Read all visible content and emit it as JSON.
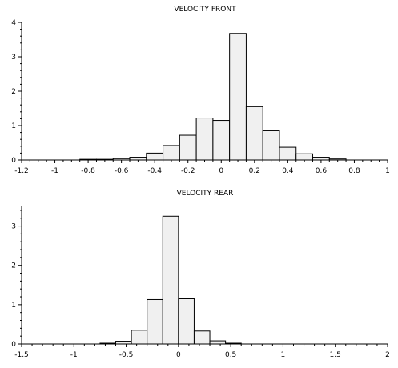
{
  "colors": {
    "bar_fill": "#f0f0f0",
    "bar_stroke": "#000000",
    "axis": "#000000",
    "background": "#ffffff"
  },
  "chart_data": [
    {
      "type": "bar",
      "histogram": true,
      "title": "VELOCITY FRONT",
      "xlabel": "",
      "ylabel": "",
      "xlim": [
        -1.2,
        1.0
      ],
      "ylim": [
        0,
        4
      ],
      "grid": false,
      "x_ticks": [
        -1.2,
        -1,
        -0.8,
        -0.6,
        -0.4,
        -0.2,
        0,
        0.2,
        0.4,
        0.6,
        0.8,
        1
      ],
      "x_tick_labels": [
        "-1.2",
        "-1",
        "-0.8",
        "-0.6",
        "-0.4",
        "-0.2",
        "0",
        "0.2",
        "0.4",
        "0.6",
        "0.8",
        "1"
      ],
      "x_minor_step": 0.05,
      "y_ticks": [
        0,
        1,
        2,
        3,
        4
      ],
      "y_tick_labels": [
        "0",
        "1",
        "2",
        "3",
        "4"
      ],
      "y_minor_step": 0.2,
      "bin_edges": [
        -0.85,
        -0.75,
        -0.65,
        -0.55,
        -0.45,
        -0.35,
        -0.25,
        -0.15,
        -0.05,
        0.05,
        0.15,
        0.25,
        0.35,
        0.45,
        0.55,
        0.65,
        0.75
      ],
      "values": [
        0.02,
        0.02,
        0.04,
        0.08,
        0.2,
        0.42,
        0.72,
        1.22,
        1.15,
        3.68,
        1.55,
        0.85,
        0.37,
        0.18,
        0.08,
        0.03
      ]
    },
    {
      "type": "bar",
      "histogram": true,
      "title": "VELOCITY REAR",
      "xlabel": "",
      "ylabel": "",
      "xlim": [
        -1.5,
        2.0
      ],
      "ylim": [
        0,
        3.5
      ],
      "grid": false,
      "x_ticks": [
        -1.5,
        -1,
        -0.5,
        0,
        0.5,
        1,
        1.5,
        2
      ],
      "x_tick_labels": [
        "-1.5",
        "-1",
        "-0.5",
        "0",
        "0.5",
        "1",
        "1.5",
        "2"
      ],
      "x_minor_step": 0.1,
      "y_ticks": [
        0,
        1,
        2,
        3
      ],
      "y_tick_labels": [
        "0",
        "1",
        "2",
        "3"
      ],
      "y_minor_step": 0.2,
      "bin_edges": [
        -0.75,
        -0.6,
        -0.45,
        -0.3,
        -0.15,
        0.0,
        0.15,
        0.3,
        0.45,
        0.6
      ],
      "values": [
        0.02,
        0.07,
        0.35,
        1.13,
        3.25,
        1.15,
        0.33,
        0.08,
        0.02
      ]
    }
  ]
}
